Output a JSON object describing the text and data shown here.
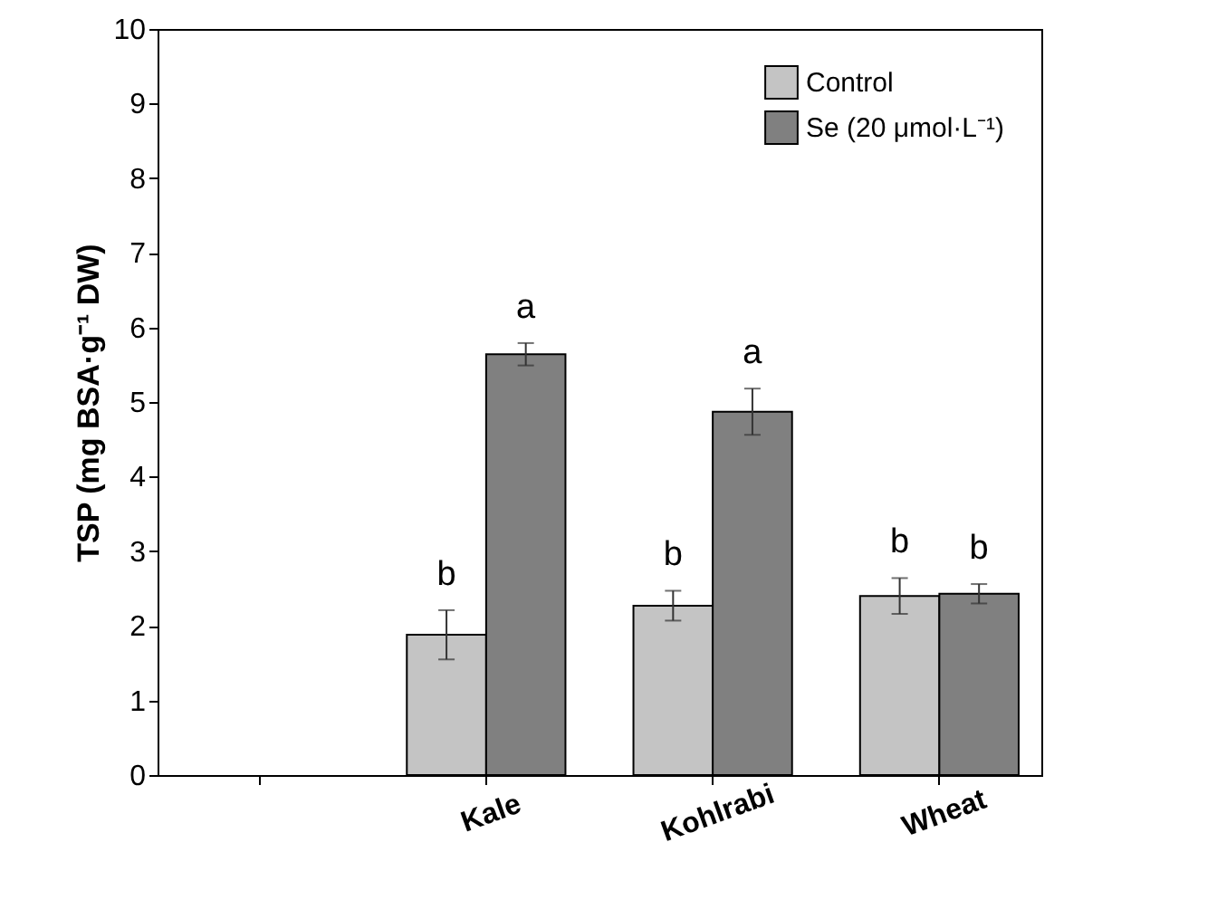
{
  "chart_data": {
    "type": "bar",
    "ylabel": "TSP (mg BSA·g⁻¹ DW)",
    "categories": [
      null,
      "Kale",
      "Kohlrabi",
      "Wheat"
    ],
    "series": [
      {
        "name": "Control",
        "color": "#c4c4c4",
        "values": [
          null,
          1.88,
          2.27,
          2.4
        ],
        "errors": [
          null,
          0.33,
          0.2,
          0.24
        ],
        "value_labels": [
          null,
          "b",
          "b",
          "b"
        ]
      },
      {
        "name": "Se (20 μmol·L⁻¹)",
        "color": "#808080",
        "values": [
          null,
          5.64,
          4.87,
          2.43
        ],
        "errors": [
          null,
          0.15,
          0.31,
          0.13
        ],
        "value_labels": [
          null,
          "a",
          "a",
          "b"
        ]
      }
    ],
    "ylim": [
      0,
      10
    ],
    "yticks": [
      0,
      1,
      2,
      3,
      4,
      5,
      6,
      7,
      8,
      9,
      10
    ],
    "grid": false,
    "legend": "top right"
  }
}
